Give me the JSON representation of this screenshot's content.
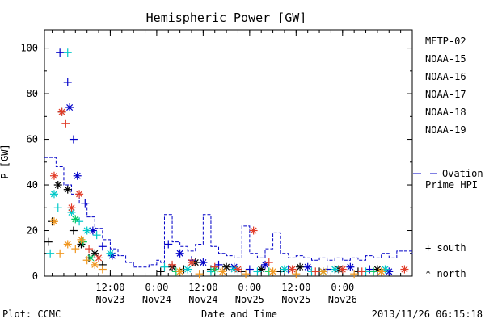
{
  "chart_data": {
    "type": "scatter",
    "title": "Hemispheric Power [GW]",
    "ylabel": "P [GW]",
    "xlabel": "Date and Time",
    "ylim": [
      0,
      108
    ],
    "xlim": [
      "2013-11-22 19:00",
      "2013-11-26 18:00"
    ],
    "yticks": [
      0,
      20,
      40,
      60,
      80,
      100
    ],
    "xticks": [
      {
        "at": "2013-11-23 12:00",
        "time": "12:00",
        "date": "Nov23"
      },
      {
        "at": "2013-11-24 00:00",
        "time": "0:00",
        "date": "Nov24"
      },
      {
        "at": "2013-11-24 12:00",
        "time": "12:00",
        "date": "Nov24"
      },
      {
        "at": "2013-11-25 00:00",
        "time": "0:00",
        "date": "Nov25"
      },
      {
        "at": "2013-11-25 12:00",
        "time": "12:00",
        "date": "Nov25"
      },
      {
        "at": "2013-11-26 00:00",
        "time": "0:00",
        "date": "Nov26"
      }
    ],
    "series": [
      {
        "name": "METP-02",
        "color": "#000000",
        "points": [
          [
            "2013-11-22 20:00",
            15,
            "south"
          ],
          [
            "2013-11-22 21:00",
            24,
            "south"
          ],
          [
            "2013-11-22 22:30",
            40,
            "north"
          ],
          [
            "2013-11-22 23:30",
            72,
            "south"
          ],
          [
            "2013-11-23 01:00",
            38,
            "north"
          ],
          [
            "2013-11-23 02:30",
            20,
            "south"
          ],
          [
            "2013-11-23 04:30",
            14,
            "north"
          ],
          [
            "2013-11-23 06:30",
            8,
            "south"
          ],
          [
            "2013-11-23 08:00",
            10,
            "north"
          ],
          [
            "2013-11-23 10:00",
            5,
            "south"
          ],
          [
            "2013-11-24 01:00",
            2,
            "south"
          ],
          [
            "2013-11-24 04:00",
            4,
            "north"
          ],
          [
            "2013-11-24 07:00",
            3,
            "south"
          ],
          [
            "2013-11-24 10:00",
            6,
            "north"
          ],
          [
            "2013-11-24 14:00",
            3,
            "south"
          ],
          [
            "2013-11-24 18:00",
            4,
            "north"
          ],
          [
            "2013-11-24 22:00",
            2,
            "south"
          ],
          [
            "2013-11-25 03:00",
            3,
            "north"
          ],
          [
            "2013-11-25 08:00",
            2,
            "south"
          ],
          [
            "2013-11-25 13:00",
            4,
            "north"
          ],
          [
            "2013-11-25 18:00",
            2,
            "south"
          ],
          [
            "2013-11-25 23:00",
            3,
            "north"
          ],
          [
            "2013-11-26 04:00",
            2,
            "south"
          ],
          [
            "2013-11-26 09:00",
            3,
            "north"
          ]
        ]
      },
      {
        "name": "NOAA-15",
        "color": "#0000c8",
        "points": [
          [
            "2013-11-22 23:00",
            98,
            "south"
          ],
          [
            "2013-11-23 01:00",
            85,
            "south"
          ],
          [
            "2013-11-23 01:30",
            74,
            "north"
          ],
          [
            "2013-11-23 02:30",
            60,
            "south"
          ],
          [
            "2013-11-23 03:30",
            44,
            "north"
          ],
          [
            "2013-11-23 05:30",
            32,
            "south"
          ],
          [
            "2013-11-23 07:30",
            20,
            "north"
          ],
          [
            "2013-11-23 10:00",
            13,
            "south"
          ],
          [
            "2013-11-23 12:30",
            9,
            "north"
          ],
          [
            "2013-11-24 03:00",
            14,
            "south"
          ],
          [
            "2013-11-24 06:00",
            10,
            "north"
          ],
          [
            "2013-11-24 09:00",
            7,
            "south"
          ],
          [
            "2013-11-24 12:00",
            6,
            "north"
          ],
          [
            "2013-11-24 16:00",
            5,
            "south"
          ],
          [
            "2013-11-24 20:00",
            4,
            "north"
          ],
          [
            "2013-11-25 00:00",
            3,
            "south"
          ],
          [
            "2013-11-25 04:00",
            5,
            "north"
          ],
          [
            "2013-11-25 10:00",
            3,
            "south"
          ],
          [
            "2013-11-25 15:00",
            4,
            "north"
          ],
          [
            "2013-11-25 20:00",
            3,
            "south"
          ],
          [
            "2013-11-26 02:00",
            4,
            "north"
          ],
          [
            "2013-11-26 07:00",
            3,
            "south"
          ],
          [
            "2013-11-26 12:00",
            2,
            "north"
          ]
        ]
      },
      {
        "name": "NOAA-16",
        "color": "#00c8c8",
        "points": [
          [
            "2013-11-22 20:30",
            10,
            "south"
          ],
          [
            "2013-11-22 21:30",
            36,
            "north"
          ],
          [
            "2013-11-22 22:30",
            30,
            "south"
          ],
          [
            "2013-11-23 01:00",
            98,
            "south"
          ],
          [
            "2013-11-23 02:00",
            28,
            "north"
          ],
          [
            "2013-11-23 04:00",
            24,
            "south"
          ],
          [
            "2013-11-23 06:00",
            20,
            "north"
          ],
          [
            "2013-11-23 08:30",
            18,
            "south"
          ],
          [
            "2013-11-23 12:00",
            10,
            "north"
          ],
          [
            "2013-11-24 02:00",
            4,
            "south"
          ],
          [
            "2013-11-24 08:00",
            3,
            "north"
          ],
          [
            "2013-11-24 14:00",
            2,
            "south"
          ],
          [
            "2013-11-24 20:00",
            3,
            "north"
          ],
          [
            "2013-11-25 02:00",
            2,
            "south"
          ],
          [
            "2013-11-25 09:00",
            3,
            "north"
          ],
          [
            "2013-11-25 16:00",
            2,
            "south"
          ],
          [
            "2013-11-25 22:00",
            3,
            "north"
          ],
          [
            "2013-11-26 06:00",
            2,
            "south"
          ],
          [
            "2013-11-26 11:00",
            3,
            "north"
          ]
        ]
      },
      {
        "name": "NOAA-17",
        "color": "#00c864",
        "points": [
          [
            "2013-11-23 03:00",
            25,
            "north"
          ],
          [
            "2013-11-23 05:00",
            15,
            "south"
          ],
          [
            "2013-11-23 07:00",
            8,
            "north"
          ],
          [
            "2013-11-24 05:00",
            2,
            "south"
          ],
          [
            "2013-11-24 15:00",
            3,
            "north"
          ],
          [
            "2013-11-25 05:00",
            2,
            "south"
          ],
          [
            "2013-11-25 19:00",
            2,
            "north"
          ],
          [
            "2013-11-26 08:00",
            2,
            "south"
          ]
        ]
      },
      {
        "name": "NOAA-18",
        "color": "#f0961e",
        "points": [
          [
            "2013-11-22 21:30",
            24,
            "north"
          ],
          [
            "2013-11-22 23:00",
            10,
            "south"
          ],
          [
            "2013-11-23 01:00",
            14,
            "north"
          ],
          [
            "2013-11-23 03:00",
            12,
            "south"
          ],
          [
            "2013-11-23 04:30",
            16,
            "north"
          ],
          [
            "2013-11-23 06:00",
            7,
            "south"
          ],
          [
            "2013-11-23 08:00",
            5,
            "north"
          ],
          [
            "2013-11-23 10:00",
            3,
            "south"
          ],
          [
            "2013-11-24 06:00",
            2,
            "north"
          ],
          [
            "2013-11-24 11:00",
            1,
            "south"
          ],
          [
            "2013-11-24 17:00",
            2,
            "north"
          ],
          [
            "2013-11-24 23:00",
            1,
            "south"
          ],
          [
            "2013-11-25 06:00",
            2,
            "north"
          ],
          [
            "2013-11-25 12:00",
            1,
            "south"
          ],
          [
            "2013-11-25 19:00",
            2,
            "north"
          ],
          [
            "2013-11-26 03:00",
            1,
            "south"
          ],
          [
            "2013-11-26 10:00",
            2,
            "north"
          ]
        ]
      },
      {
        "name": "NOAA-19",
        "color": "#e13c28",
        "points": [
          [
            "2013-11-22 21:30",
            44,
            "north"
          ],
          [
            "2013-11-22 23:30",
            72,
            "north"
          ],
          [
            "2013-11-23 00:30",
            67,
            "south"
          ],
          [
            "2013-11-23 02:00",
            30,
            "north"
          ],
          [
            "2013-11-23 04:00",
            36,
            "north"
          ],
          [
            "2013-11-23 06:30",
            12,
            "south"
          ],
          [
            "2013-11-23 09:00",
            8,
            "north"
          ],
          [
            "2013-11-24 04:00",
            5,
            "south"
          ],
          [
            "2013-11-24 09:00",
            6,
            "north"
          ],
          [
            "2013-11-24 15:00",
            4,
            "south"
          ],
          [
            "2013-11-24 21:00",
            3,
            "north"
          ],
          [
            "2013-11-25 01:00",
            20,
            "north"
          ],
          [
            "2013-11-25 05:00",
            6,
            "south"
          ],
          [
            "2013-11-25 11:00",
            3,
            "north"
          ],
          [
            "2013-11-25 17:00",
            2,
            "south"
          ],
          [
            "2013-11-26 00:00",
            3,
            "north"
          ],
          [
            "2013-11-26 05:00",
            2,
            "south"
          ],
          [
            "2013-11-26 16:00",
            3,
            "north"
          ]
        ]
      }
    ],
    "ovation": {
      "name": "Ovation Prime HPI",
      "color": "#0000c8",
      "points": [
        [
          "2013-11-22 19:00",
          52
        ],
        [
          "2013-11-22 22:00",
          48
        ],
        [
          "2013-11-23 00:00",
          40
        ],
        [
          "2013-11-23 02:00",
          36
        ],
        [
          "2013-11-23 04:00",
          32
        ],
        [
          "2013-11-23 06:00",
          26
        ],
        [
          "2013-11-23 08:00",
          21
        ],
        [
          "2013-11-23 10:00",
          16
        ],
        [
          "2013-11-23 12:00",
          12
        ],
        [
          "2013-11-23 14:00",
          9
        ],
        [
          "2013-11-23 16:00",
          6
        ],
        [
          "2013-11-23 18:00",
          4
        ],
        [
          "2013-11-23 20:00",
          4
        ],
        [
          "2013-11-23 22:00",
          5
        ],
        [
          "2013-11-24 00:00",
          7
        ],
        [
          "2013-11-24 01:00",
          6
        ],
        [
          "2013-11-24 02:00",
          27
        ],
        [
          "2013-11-24 04:00",
          15
        ],
        [
          "2013-11-24 06:00",
          13
        ],
        [
          "2013-11-24 08:00",
          11
        ],
        [
          "2013-11-24 10:00",
          14
        ],
        [
          "2013-11-24 12:00",
          27
        ],
        [
          "2013-11-24 14:00",
          13
        ],
        [
          "2013-11-24 16:00",
          10
        ],
        [
          "2013-11-24 18:00",
          9
        ],
        [
          "2013-11-24 20:00",
          8
        ],
        [
          "2013-11-24 22:00",
          22
        ],
        [
          "2013-11-25 00:00",
          10
        ],
        [
          "2013-11-25 02:00",
          8
        ],
        [
          "2013-11-25 04:00",
          12
        ],
        [
          "2013-11-25 06:00",
          19
        ],
        [
          "2013-11-25 08:00",
          10
        ],
        [
          "2013-11-25 10:00",
          8
        ],
        [
          "2013-11-25 12:00",
          9
        ],
        [
          "2013-11-25 14:00",
          8
        ],
        [
          "2013-11-25 16:00",
          7
        ],
        [
          "2013-11-25 18:00",
          8
        ],
        [
          "2013-11-25 20:00",
          7
        ],
        [
          "2013-11-25 22:00",
          8
        ],
        [
          "2013-11-26 00:00",
          7
        ],
        [
          "2013-11-26 02:00",
          8
        ],
        [
          "2013-11-26 04:00",
          7
        ],
        [
          "2013-11-26 06:00",
          9
        ],
        [
          "2013-11-26 08:00",
          8
        ],
        [
          "2013-11-26 10:00",
          10
        ],
        [
          "2013-11-26 12:00",
          8
        ],
        [
          "2013-11-26 14:00",
          11
        ],
        [
          "2013-11-26 16:00",
          11
        ],
        [
          "2013-11-26 18:00",
          10
        ]
      ]
    }
  },
  "legend": {
    "entries": [
      {
        "label": "METP-02",
        "color": "#000000"
      },
      {
        "label": "NOAA-15",
        "color": "#0000c8"
      },
      {
        "label": "NOAA-16",
        "color": "#00c8c8"
      },
      {
        "label": "NOAA-17",
        "color": "#00c864"
      },
      {
        "label": "NOAA-18",
        "color": "#f0961e"
      },
      {
        "label": "NOAA-19",
        "color": "#e13c28"
      }
    ],
    "ovation_line1": "Ovation",
    "ovation_line2": "Prime HPI",
    "south_label": "+ south",
    "north_label": "* north"
  },
  "footer": {
    "left": "Plot: CCMC",
    "right": "2013/11/26 06:15:18"
  }
}
